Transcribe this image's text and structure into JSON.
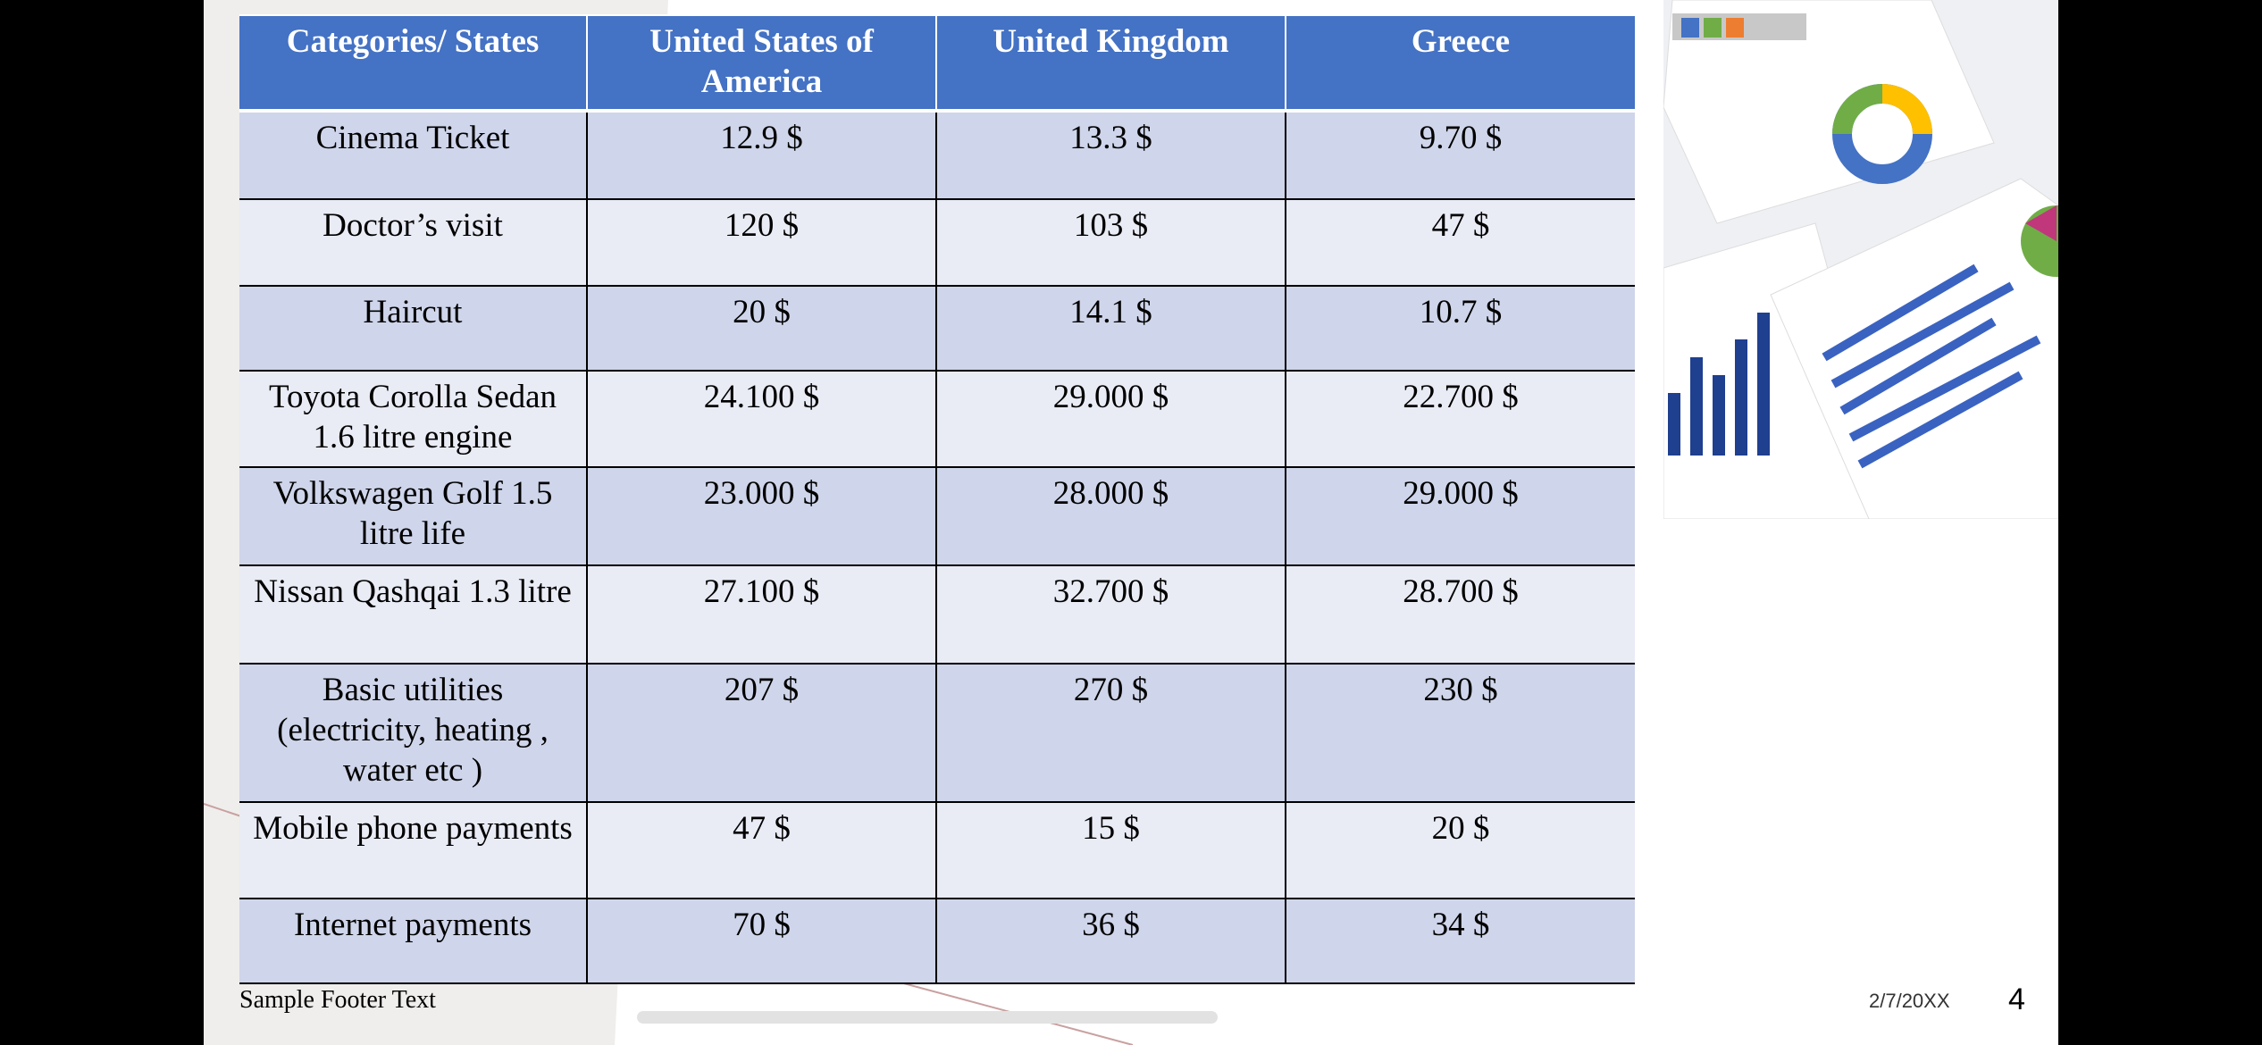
{
  "table": {
    "header": [
      "Categories/ States",
      "United States of America",
      "United Kingdom",
      "Greece"
    ],
    "rows": [
      [
        "Cinema Ticket",
        "12.9 $",
        "13.3 $",
        "9.70 $"
      ],
      [
        "Doctor’s visit",
        "120 $",
        "103 $",
        "47 $"
      ],
      [
        "Haircut",
        "20 $",
        "14.1 $",
        "10.7 $"
      ],
      [
        "Toyota Corolla Sedan 1.6 litre engine",
        "24.100 $",
        "29.000 $",
        "22.700 $"
      ],
      [
        "Volkswagen Golf 1.5 litre life",
        "23.000 $",
        "28.000 $",
        "29.000 $"
      ],
      [
        "Nissan Qashqai 1.3 litre",
        "27.100 $",
        "32.700 $",
        "28.700 $"
      ],
      [
        "Basic utilities (electricity, heating , water etc )",
        "207 $",
        "270 $",
        "230 $"
      ],
      [
        "Mobile phone payments",
        "47 $",
        "15 $",
        "20 $"
      ],
      [
        "Internet payments",
        "70 $",
        "36 $",
        "34 $"
      ]
    ]
  },
  "footer": {
    "text": "Sample Footer Text",
    "date": "2/7/20XX",
    "page": "4"
  }
}
